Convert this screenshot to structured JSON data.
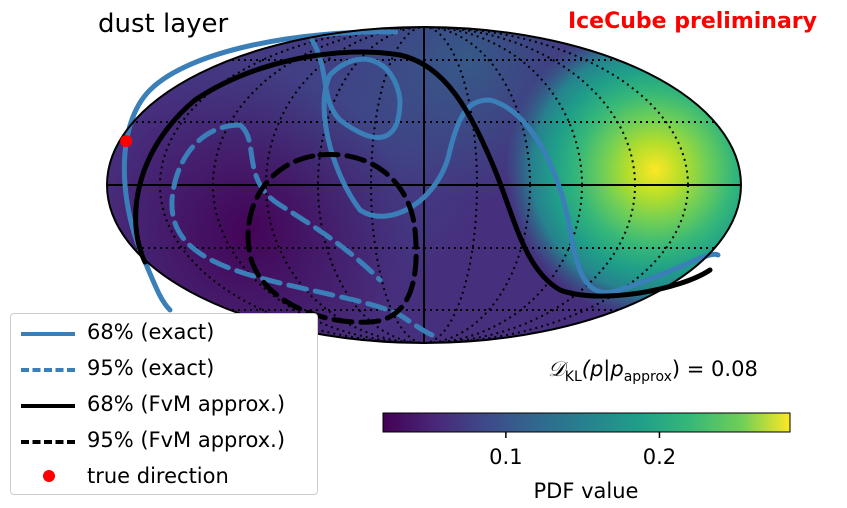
{
  "chart_data": {
    "type": "heatmap",
    "projection": "mollweide",
    "title": "dust layer",
    "watermark": "IceCube preliminary",
    "annotation": {
      "kl_prefix": "𝒟",
      "kl_sub": "KL",
      "kl_body": "(p|p",
      "kl_sub2": "approx",
      "kl_tail": ") = 0.08",
      "kl_value": 0.08
    },
    "heatmap": {
      "hotspot": {
        "longitude_deg": 140,
        "latitude_deg": 5,
        "peak_pdf": 0.28
      },
      "background_pdf": 0.03,
      "secondary_low": {
        "longitude_deg": -120,
        "latitude_deg": -20
      }
    },
    "colorbar": {
      "label": "PDF value",
      "range": [
        0.02,
        0.285
      ],
      "ticks": [
        0.1,
        0.2
      ],
      "tick_labels": [
        "0.1",
        "0.2"
      ],
      "colormap": "viridis"
    },
    "true_direction": {
      "longitude_deg": -176,
      "latitude_deg": 25
    },
    "contours": [
      {
        "name": "68% (exact)",
        "style": "solid",
        "color": "#3b7fb8"
      },
      {
        "name": "95% (exact)",
        "style": "dashed",
        "color": "#3b7fb8"
      },
      {
        "name": "68% (FvM approx.)",
        "style": "solid",
        "color": "#000000"
      },
      {
        "name": "95% (FvM approx.)",
        "style": "dashed",
        "color": "#000000"
      }
    ],
    "legend": {
      "placement": "lower-left",
      "entries": [
        {
          "label": "68% (exact)",
          "kind": "solid",
          "color": "#3b7fb8"
        },
        {
          "label": "95% (exact)",
          "kind": "dashed",
          "color": "#3b7fb8"
        },
        {
          "label": "68% (FvM approx.)",
          "kind": "solid",
          "color": "#000000"
        },
        {
          "label": "95% (FvM approx.)",
          "kind": "dashed",
          "color": "#000000"
        },
        {
          "label": "true direction",
          "kind": "dot",
          "color": "#ff0000"
        }
      ]
    },
    "colors": {
      "watermark": "#ff0000",
      "exact": "#3b7fb8",
      "approx": "#000000",
      "marker": "#ff0000"
    }
  }
}
